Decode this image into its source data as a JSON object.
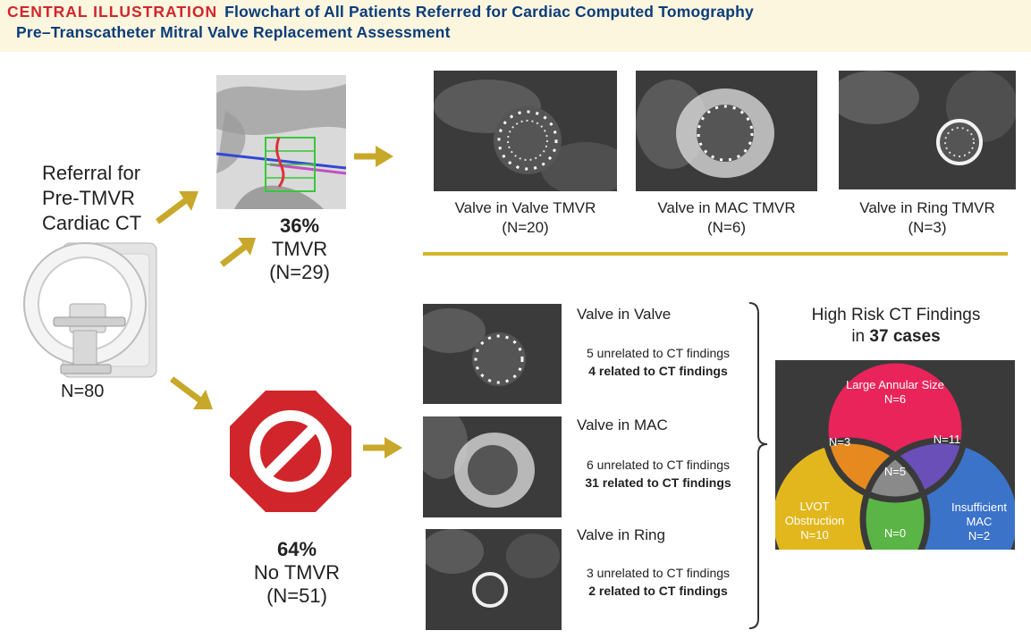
{
  "header": {
    "label": "CENTRAL ILLUSTRATION",
    "title_line1": "Flowchart of All Patients Referred for Cardiac Computed Tomography",
    "title_line2": "Pre–Transcatheter Mitral Valve Replacement Assessment"
  },
  "referral": {
    "line1": "Referral for",
    "line2": "Pre-TMVR",
    "line3": "Cardiac CT",
    "count": "N=80"
  },
  "tmvr": {
    "percent": "36%",
    "label": "TMVR",
    "count": "(N=29)"
  },
  "no_tmvr": {
    "percent": "64%",
    "label": "No TMVR",
    "count": "(N=51)"
  },
  "tmvr_cases": [
    {
      "label": "Valve in Valve TMVR",
      "count": "(N=20)"
    },
    {
      "label": "Valve in MAC TMVR",
      "count": "(N=6)"
    },
    {
      "label": "Valve in Ring TMVR",
      "count": "(N=3)"
    }
  ],
  "no_tmvr_cases": [
    {
      "title": "Valve in Valve",
      "unrelated": "5 unrelated to CT findings",
      "related": "4 related to CT findings"
    },
    {
      "title": "Valve in MAC",
      "unrelated": "6 unrelated to CT findings",
      "related": "31 related to CT findings"
    },
    {
      "title": "Valve in Ring",
      "unrelated": "3 unrelated to CT findings",
      "related": "2 related to CT findings"
    }
  ],
  "risk": {
    "title": "High Risk CT Findings",
    "sub_prefix": "in ",
    "sub_bold": "37 cases"
  },
  "venn": {
    "large_annular_label": "Large Annular Size",
    "large_annular_n": "N=6",
    "lvot_label1": "LVOT",
    "lvot_label2": "Obstruction",
    "lvot_n": "N=10",
    "insufficient_label1": "Insufficient",
    "insufficient_label2": "MAC",
    "insufficient_n": "N=2",
    "overlap_large_lvot": "N=3",
    "overlap_large_insufficient": "N=11",
    "overlap_lvot_insufficient": "N=0",
    "overlap_all": "N=5",
    "colors": {
      "large_annular": "#e8245a",
      "lvot": "#e2b71d",
      "insufficient": "#3b73c9",
      "large_lvot": "#e68a1f",
      "large_insufficient": "#6a4fb8",
      "lvot_insufficient": "#5bb546",
      "all": "#8a8a8a",
      "background": "#3a3a3a"
    }
  },
  "colors": {
    "accent_red": "#d0262b",
    "title_blue": "#0b3c7a",
    "arrow_gold": "#c8a82a",
    "divider_gold": "#d4b52a",
    "stop_red": "#d0262b"
  }
}
